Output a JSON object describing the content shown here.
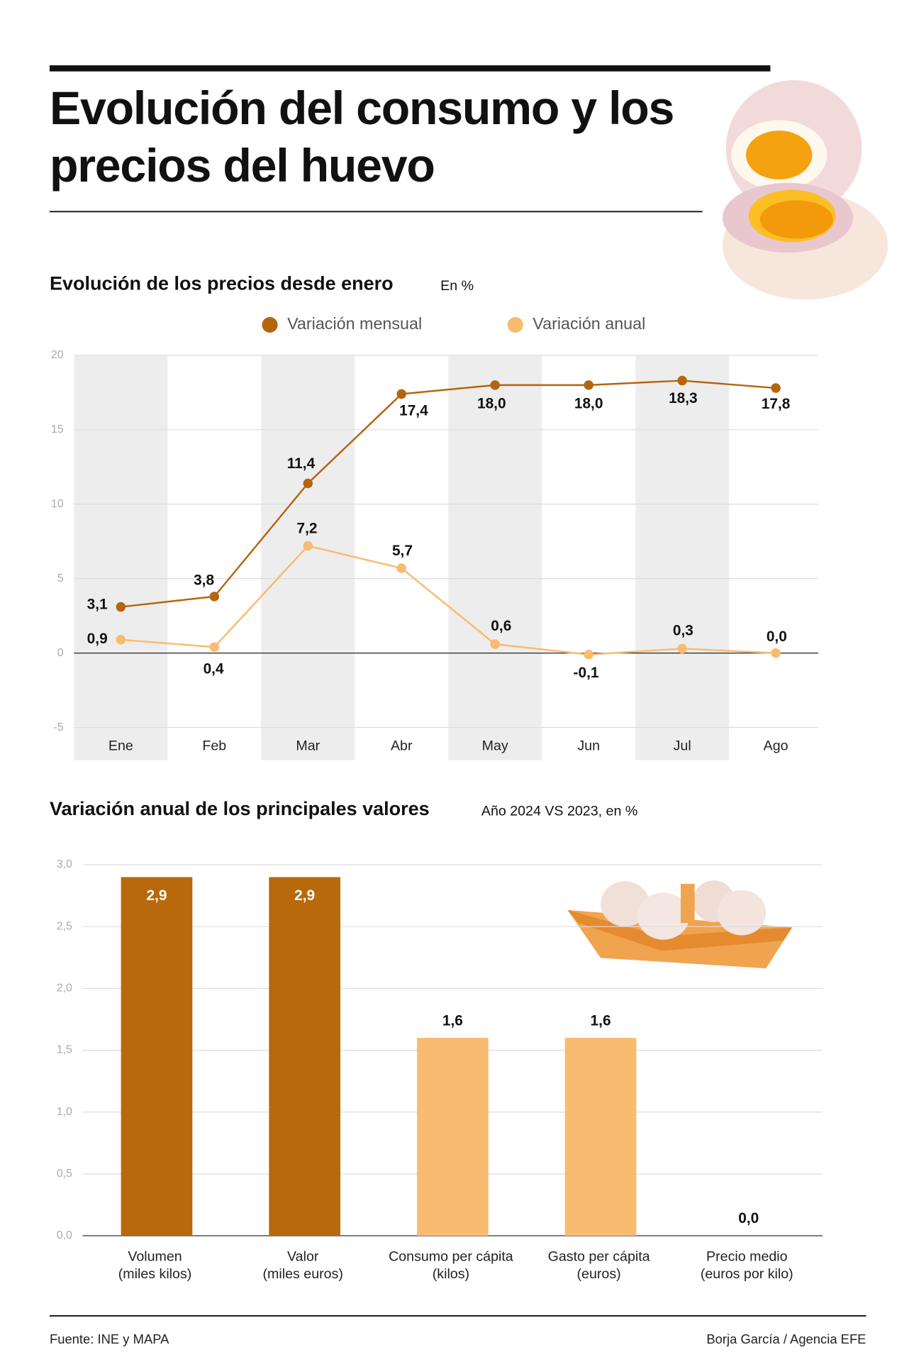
{
  "title": "Evolución del consumo y los\nprecios del huevo",
  "chart_data": [
    {
      "type": "line",
      "title": "Evolución de los precios desde enero",
      "subtitle": "En %",
      "categories": [
        "Ene",
        "Feb",
        "Mar",
        "Abr",
        "May",
        "Jun",
        "Jul",
        "Ago"
      ],
      "series": [
        {
          "name": "Variación mensual",
          "color": "#b5650d",
          "values": [
            3.1,
            3.8,
            11.4,
            17.4,
            18.0,
            18.0,
            18.3,
            17.8
          ],
          "value_labels": [
            "3,1",
            "3,8",
            "11,4",
            "17,4",
            "18,0",
            "18,0",
            "18,3",
            "17,8"
          ]
        },
        {
          "name": "Variación anual",
          "color": "#f8bb70",
          "values": [
            0.9,
            0.4,
            7.2,
            5.7,
            0.6,
            -0.1,
            0.3,
            0.0
          ],
          "value_labels": [
            "0,9",
            "0,4",
            "7,2",
            "5,7",
            "0,6",
            "-0,1",
            "0,3",
            "0,0"
          ]
        }
      ],
      "ylim": [
        -7.2,
        20
      ],
      "yticks": [
        20,
        15,
        10,
        5,
        0,
        -5
      ],
      "grid": true,
      "legend": "top"
    },
    {
      "type": "bar",
      "title": "Variación anual de los principales valores",
      "subtitle": "Año 2024 VS 2023, en %",
      "categories": [
        "Volumen\n(miles kilos)",
        "Valor\n(miles euros)",
        "Consumo per cápita\n(kilos)",
        "Gasto per cápita\n(euros)",
        "Precio medio\n(euros por kilo)"
      ],
      "values": [
        2.9,
        2.9,
        1.6,
        1.6,
        0.0
      ],
      "value_labels": [
        "2,9",
        "2,9",
        "1,6",
        "1,6",
        "0,0"
      ],
      "colors": [
        "#b8690b",
        "#b8690b",
        "#f8bb70",
        "#f8bb70",
        "#f8bb70"
      ],
      "ylim": [
        0,
        3.0
      ],
      "yticks": [
        {
          "value": 3.0,
          "label": "3,0"
        },
        {
          "value": 2.5,
          "label": "2,5"
        },
        {
          "value": 2.0,
          "label": "2,0"
        },
        {
          "value": 1.5,
          "label": "1,5"
        },
        {
          "value": 1.0,
          "label": "1,0"
        },
        {
          "value": 0.5,
          "label": "0,5"
        },
        {
          "value": 0.0,
          "label": "0,0"
        }
      ],
      "grid": true
    }
  ],
  "source": "Fuente: INE y MAPA",
  "credit": "Borja García / Agencia EFE"
}
